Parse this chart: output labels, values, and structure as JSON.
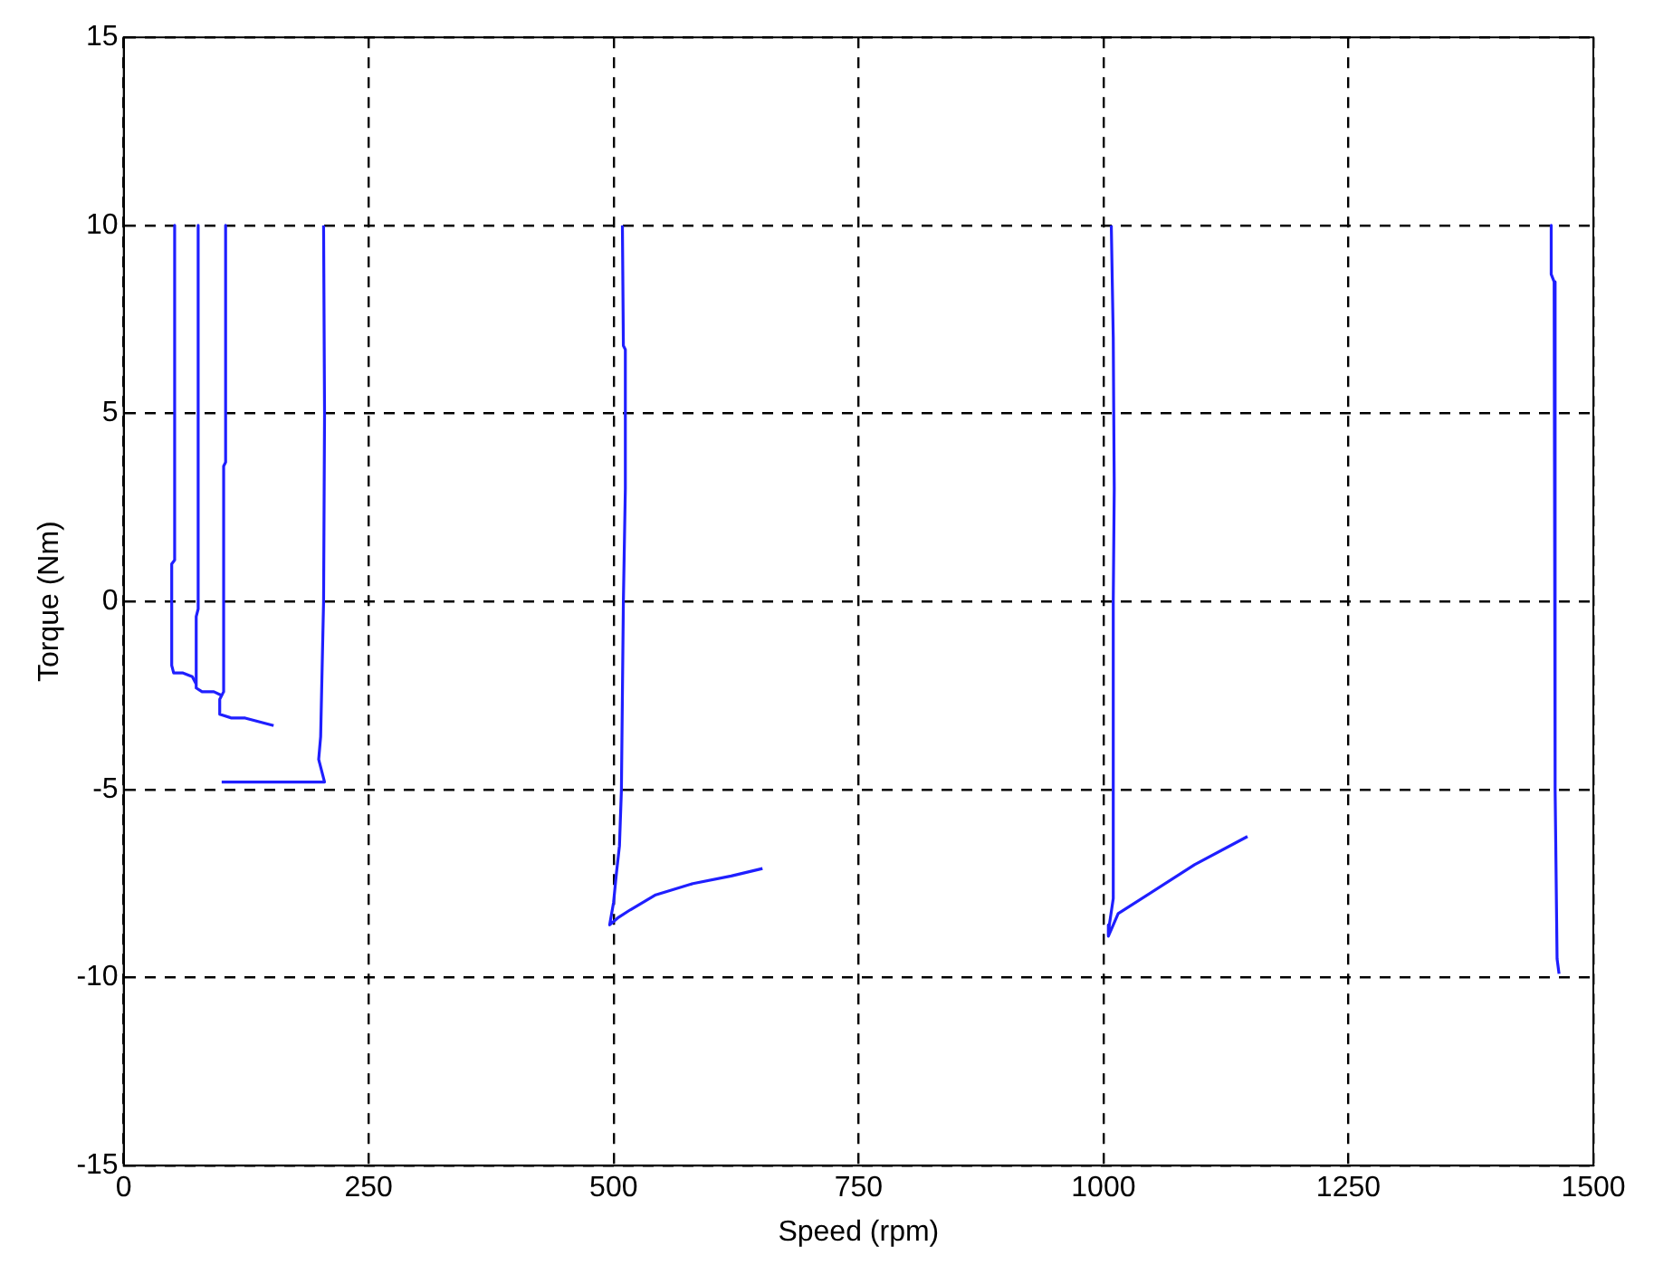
{
  "chart_data": {
    "type": "line",
    "xlabel": "Speed (rpm)",
    "ylabel": "Torque (Nm)",
    "xlim": [
      0,
      1500
    ],
    "xticks": [
      0,
      250,
      500,
      750,
      1000,
      1250,
      1500
    ],
    "ylim": [
      -15,
      15
    ],
    "yticks": [
      -15,
      -10,
      -5,
      0,
      5,
      10,
      15
    ],
    "grid": true,
    "line_style": "solid",
    "series": [
      {
        "color": "#1f1fff",
        "x": [
          52,
          52,
          49,
          49,
          51,
          60,
          70,
          74
        ],
        "values": [
          10,
          1.1,
          1.0,
          -1.7,
          -1.9,
          -1.9,
          -2.0,
          -2.2
        ]
      },
      {
        "color": "#1f1fff",
        "x": [
          76,
          76,
          74,
          74,
          80,
          92,
          100
        ],
        "values": [
          10,
          -0.2,
          -0.4,
          -2.3,
          -2.4,
          -2.4,
          -2.5
        ]
      },
      {
        "color": "#1f1fff",
        "x": [
          104,
          104,
          102,
          102,
          98,
          98,
          110,
          124,
          153
        ],
        "values": [
          10,
          3.7,
          3.6,
          -2.4,
          -2.6,
          -3.0,
          -3.1,
          -3.1,
          -3.3
        ]
      },
      {
        "color": "#1f1fff",
        "x": [
          100,
          205,
          199,
          201,
          204,
          205,
          204
        ],
        "values": [
          -4.8,
          -4.8,
          -4.2,
          -3.6,
          0,
          5,
          10
        ]
      },
      {
        "color": "#1f1fff",
        "x": [
          509,
          510,
          512,
          512,
          510,
          508,
          506,
          503,
          500,
          496,
          505,
          517,
          543,
          581,
          620,
          652
        ],
        "values": [
          10,
          6.8,
          6.7,
          3,
          0,
          -5,
          -6.5,
          -7.2,
          -8,
          -8.6,
          -8.4,
          -8.2,
          -7.8,
          -7.5,
          -7.3,
          -7.1
        ]
      },
      {
        "color": "#1f1fff",
        "x": [
          1008,
          1010,
          1011,
          1010,
          1010,
          1006,
          1005,
          1015,
          1093,
          1147
        ],
        "values": [
          10,
          7,
          3,
          0,
          -7.9,
          -8.6,
          -8.9,
          -8.3,
          -7.0,
          -6.25
        ]
      },
      {
        "color": "#1f1fff",
        "x": [
          1457,
          1457,
          1460,
          1461,
          1463,
          1465
        ],
        "values": [
          10,
          8.7,
          8.5,
          -5,
          -9.5,
          -9.9
        ]
      }
    ]
  }
}
